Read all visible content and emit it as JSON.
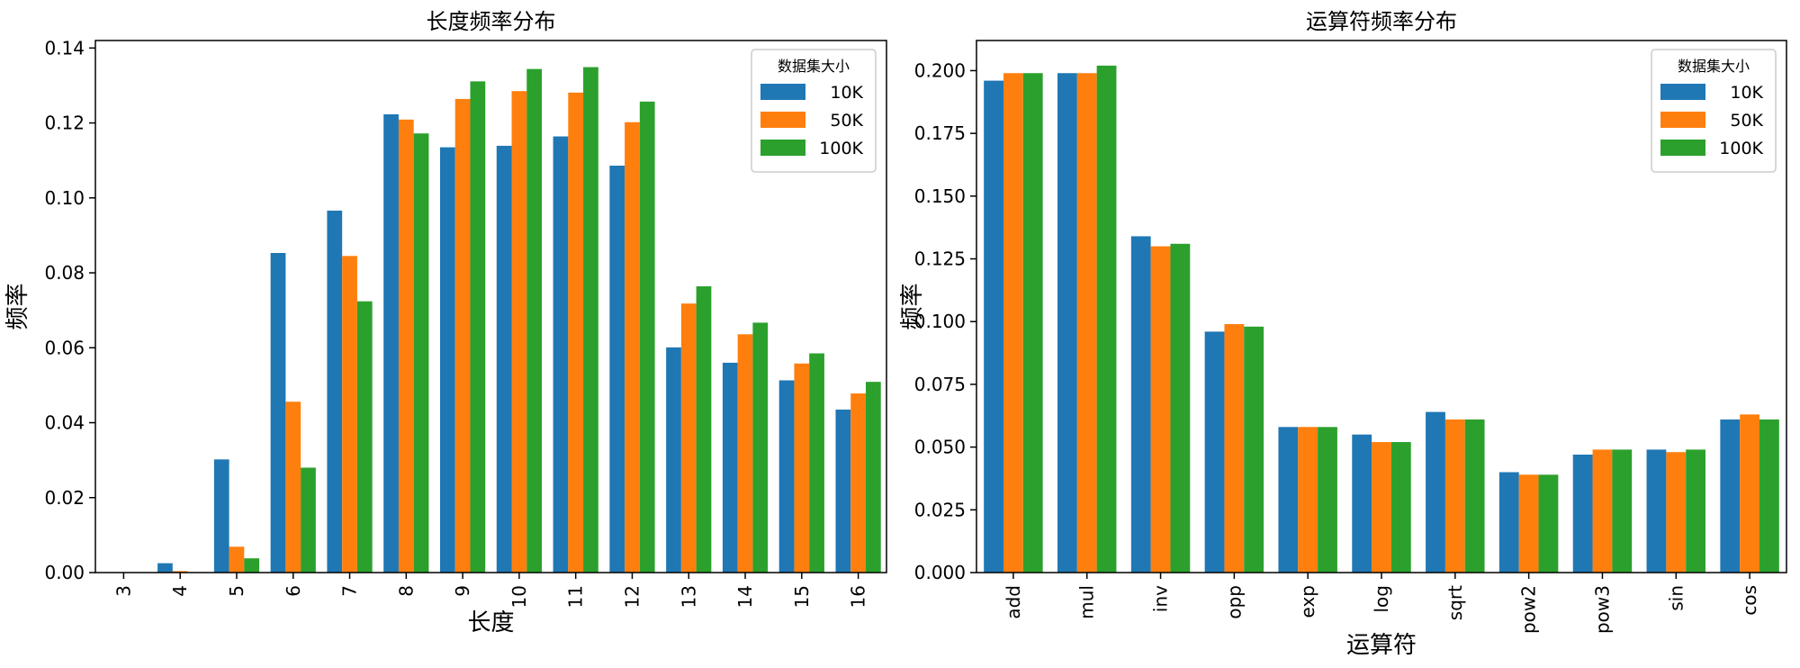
{
  "chart_data": [
    {
      "type": "bar",
      "title": "长度频率分布",
      "xlabel": "长度",
      "ylabel": "频率",
      "ylim": [
        0,
        0.142
      ],
      "yticks": [
        "0.00",
        "0.02",
        "0.04",
        "0.06",
        "0.08",
        "0.10",
        "0.12",
        "0.14"
      ],
      "grid": false,
      "legend": {
        "title": "数据集大小",
        "position": "top-right"
      },
      "categories": [
        "3",
        "4",
        "5",
        "6",
        "7",
        "8",
        "9",
        "10",
        "11",
        "12",
        "13",
        "14",
        "15",
        "16"
      ],
      "series": [
        {
          "name": "10K",
          "color": "#1f77b4",
          "values": [
            0.0,
            0.0025,
            0.0302,
            0.0853,
            0.0966,
            0.1223,
            0.1135,
            0.1139,
            0.1164,
            0.1086,
            0.0601,
            0.056,
            0.0513,
            0.0435
          ]
        },
        {
          "name": "50K",
          "color": "#ff7f0e",
          "values": [
            0.0,
            0.0004,
            0.0069,
            0.0456,
            0.0845,
            0.1209,
            0.1264,
            0.1285,
            0.1281,
            0.1202,
            0.0718,
            0.0636,
            0.0558,
            0.0478
          ]
        },
        {
          "name": "100K",
          "color": "#2ca02c",
          "values": [
            0.0,
            0.0001,
            0.0038,
            0.028,
            0.0724,
            0.1172,
            0.1311,
            0.1344,
            0.1349,
            0.1257,
            0.0764,
            0.0667,
            0.0585,
            0.0509
          ]
        }
      ]
    },
    {
      "type": "bar",
      "title": "运算符频率分布",
      "xlabel": "运算符",
      "ylabel": "频率",
      "ylim": [
        0,
        0.212
      ],
      "yticks": [
        "0.000",
        "0.025",
        "0.050",
        "0.075",
        "0.100",
        "0.125",
        "0.150",
        "0.175",
        "0.200"
      ],
      "grid": false,
      "legend": {
        "title": "数据集大小",
        "position": "top-right"
      },
      "categories": [
        "add",
        "mul",
        "inv",
        "opp",
        "exp",
        "log",
        "sqrt",
        "pow2",
        "pow3",
        "sin",
        "cos"
      ],
      "series": [
        {
          "name": "10K",
          "color": "#1f77b4",
          "values": [
            0.196,
            0.199,
            0.134,
            0.096,
            0.058,
            0.055,
            0.064,
            0.04,
            0.047,
            0.049,
            0.061
          ]
        },
        {
          "name": "50K",
          "color": "#ff7f0e",
          "values": [
            0.199,
            0.199,
            0.13,
            0.099,
            0.058,
            0.052,
            0.061,
            0.039,
            0.049,
            0.048,
            0.063
          ]
        },
        {
          "name": "100K",
          "color": "#2ca02c",
          "values": [
            0.199,
            0.202,
            0.131,
            0.098,
            0.058,
            0.052,
            0.061,
            0.039,
            0.049,
            0.049,
            0.061
          ]
        }
      ]
    }
  ]
}
